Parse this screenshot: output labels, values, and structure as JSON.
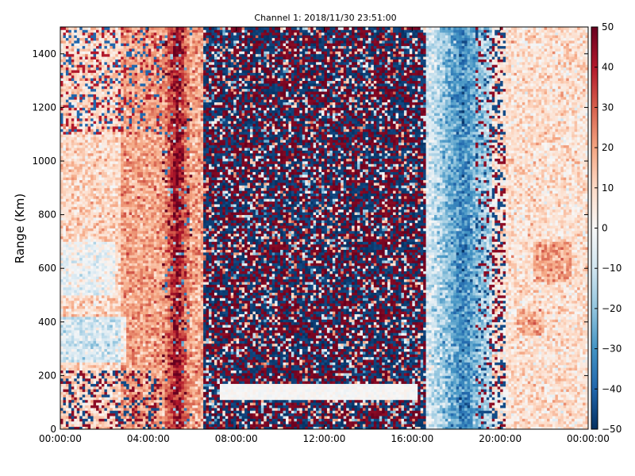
{
  "chart_data": {
    "type": "heatmap",
    "title": "Channel 1: 2018/11/30 23:51:00",
    "xlabel": "",
    "ylabel": "Range (Km)",
    "x_ticks": [
      "00:00:00",
      "04:00:00",
      "08:00:00",
      "12:00:00",
      "16:00:00",
      "20:00:00",
      "00:00:00"
    ],
    "x_range_hours": [
      0,
      24
    ],
    "y_ticks": [
      0,
      200,
      400,
      600,
      800,
      1000,
      1200,
      1400
    ],
    "ylim": [
      0,
      1500
    ],
    "colorbar_ticks": [
      50,
      40,
      30,
      20,
      10,
      0,
      -10,
      -20,
      -30,
      -40,
      -50
    ],
    "clim": [
      -50,
      50
    ],
    "colormap": "RdBu_r",
    "colormap_stops": [
      "#053061",
      "#2166ac",
      "#4393c3",
      "#92c5de",
      "#d1e5f0",
      "#f7f7f7",
      "#fddbc7",
      "#f4a582",
      "#d6604d",
      "#b2182b",
      "#67001f"
    ],
    "grid": false,
    "features": [
      {
        "hours": [
          0,
          5
        ],
        "mean": 12,
        "noise": 12,
        "note": "mostly light red/white, light-blue band near 250-400 km"
      },
      {
        "hours": [
          4.5,
          6
        ],
        "mean": 40,
        "noise": 10,
        "note": "strong red streak"
      },
      {
        "hours": [
          6.5,
          16.5
        ],
        "mean": 0,
        "noise": "saturated",
        "note": "random dark red / dark blue speckle"
      },
      {
        "hours": [
          7.3,
          16.3
        ],
        "range_km": [
          110,
          170
        ],
        "mean": 0,
        "note": "white horizontal band"
      },
      {
        "hours": [
          16.5,
          19.5
        ],
        "mean": -25,
        "noise": 12,
        "note": "blue band"
      },
      {
        "hours": [
          20,
          24
        ],
        "mean": 10,
        "noise": 10,
        "note": "light red/white"
      }
    ]
  }
}
